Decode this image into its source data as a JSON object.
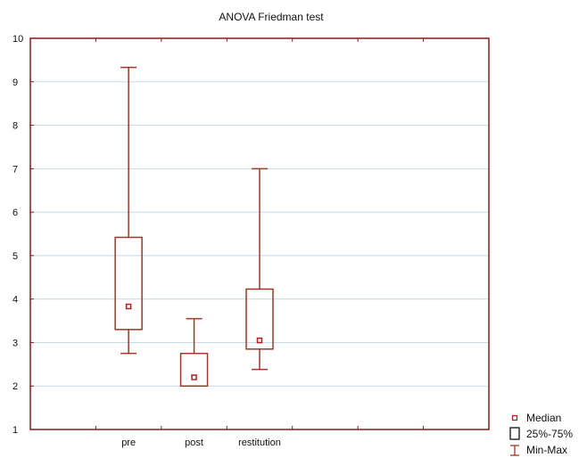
{
  "chart_data": {
    "type": "box",
    "title": "ANOVA Friedman test",
    "xlabel": "",
    "ylabel": "",
    "ylim": [
      1,
      10
    ],
    "yticks": [
      1,
      2,
      3,
      4,
      5,
      6,
      7,
      8,
      9,
      10
    ],
    "categories": [
      "pre",
      "post",
      "restitution"
    ],
    "boxes": [
      {
        "category": "pre",
        "min": 2.75,
        "q1": 3.3,
        "median": 3.83,
        "q3": 5.42,
        "max": 9.33
      },
      {
        "category": "post",
        "min": 2.0,
        "q1": 2.0,
        "median": 2.2,
        "q3": 2.75,
        "max": 3.55
      },
      {
        "category": "restitution",
        "min": 2.38,
        "q1": 2.85,
        "median": 3.05,
        "q3": 4.23,
        "max": 7.0
      }
    ],
    "legend": {
      "position": "bottom-right",
      "items": [
        "Median",
        "25%-75%",
        "Min-Max"
      ]
    },
    "grid": true,
    "colors": {
      "box": "#9a3a2a",
      "axis": "#8b1a1a",
      "grid": "#c8d8ea",
      "median_marker": "#b02020"
    }
  }
}
